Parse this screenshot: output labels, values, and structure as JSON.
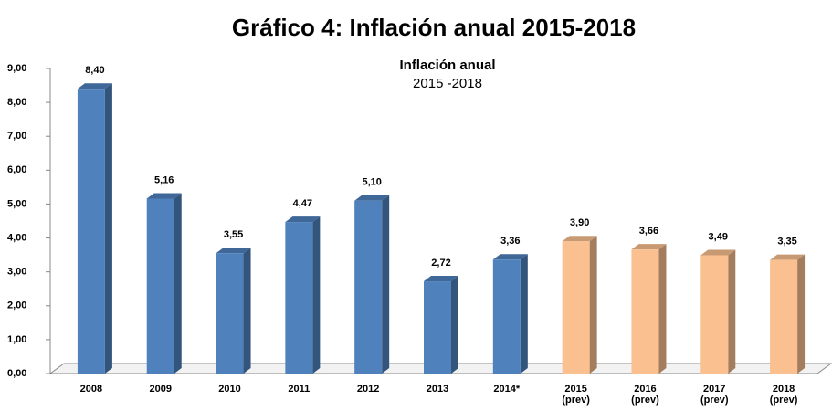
{
  "chart_data": {
    "type": "bar3d",
    "title": "Gráfico 4: Inflación anual 2015-2018",
    "subtitle": "Inflación anual",
    "subtitle2": "2015 -2018",
    "categories": [
      "2008",
      "2009",
      "2010",
      "2011",
      "2012",
      "2013",
      "2014*",
      "2015 (prev)",
      "2016 (prev)",
      "2017 (prev)",
      "2018 (prev)"
    ],
    "values": [
      8.4,
      5.16,
      3.55,
      4.47,
      5.1,
      2.72,
      3.36,
      3.9,
      3.66,
      3.49,
      3.35
    ],
    "value_labels": [
      "8,40",
      "5,16",
      "3,55",
      "4,47",
      "5,10",
      "2,72",
      "3,36",
      "3,90",
      "3,66",
      "3,49",
      "3,35"
    ],
    "colors": [
      "#4f81bd",
      "#4f81bd",
      "#4f81bd",
      "#4f81bd",
      "#4f81bd",
      "#4f81bd",
      "#4f81bd",
      "#fac090",
      "#fac090",
      "#fac090",
      "#fac090"
    ],
    "ylim": [
      0,
      9
    ],
    "yticks": [
      {
        "value": 0,
        "label": "0,00"
      },
      {
        "value": 1,
        "label": "1,00"
      },
      {
        "value": 2,
        "label": "2,00"
      },
      {
        "value": 3,
        "label": "3,00"
      },
      {
        "value": 4,
        "label": "4,00"
      },
      {
        "value": 5,
        "label": "5,00"
      },
      {
        "value": 6,
        "label": "6,00"
      },
      {
        "value": 7,
        "label": "7,00"
      },
      {
        "value": 8,
        "label": "8,00"
      },
      {
        "value": 9,
        "label": "9,00"
      }
    ],
    "grid": false
  }
}
